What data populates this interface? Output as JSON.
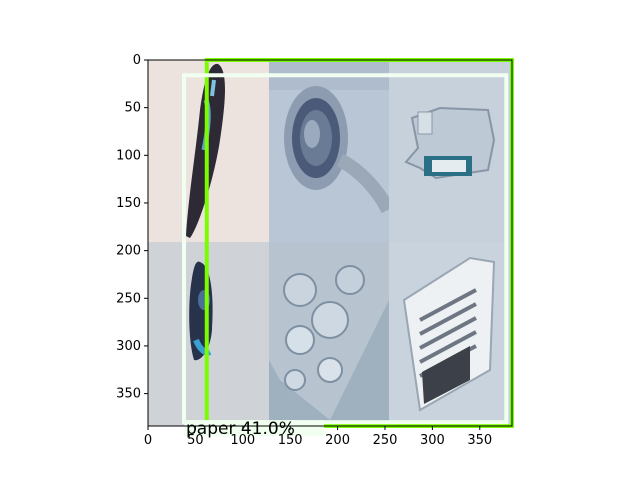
{
  "figure": {
    "x_ticks": [
      "0",
      "50",
      "100",
      "150",
      "200",
      "250",
      "300",
      "350"
    ],
    "y_ticks": [
      "0",
      "50",
      "100",
      "150",
      "200",
      "250",
      "300",
      "350"
    ],
    "x_range": [
      0,
      384
    ],
    "y_range": [
      0,
      384
    ],
    "y_inverted": true
  },
  "tiles": [
    {
      "name": "tile-dark-bottle",
      "bg": "#ece3de",
      "object": "crushed dark plastic bottle"
    },
    {
      "name": "tile-glass-bottle-bottom",
      "bg": "#b9c6d6",
      "object": "glass bottle viewed from bottom"
    },
    {
      "name": "tile-crushed-plastic-bottle",
      "bg": "#c7d1dc",
      "object": "crushed clear plastic bottle with label"
    },
    {
      "name": "tile-dark-bottle-2",
      "bg": "#cfd3d8",
      "object": "crushed dark blue bottle"
    },
    {
      "name": "tile-broken-glass",
      "bg": "#9fb0bf",
      "object": "broken glass shards"
    },
    {
      "name": "tile-newspaper",
      "bg": "#c9d3de",
      "object": "folded newspaper page"
    }
  ],
  "detections": [
    {
      "name": "detection-box-green",
      "color": "#7cfc00",
      "label": "",
      "x0": 62,
      "y0": 0,
      "x1": 384,
      "y1": 384
    },
    {
      "name": "detection-box-white",
      "color": "#f0fff0",
      "label": "paper 41.0%",
      "x0": 38,
      "y0": 16,
      "x1": 378,
      "y1": 380
    }
  ],
  "colors": {
    "axis": "#000000",
    "detection_green": "#7cfc00",
    "detection_white": "#f0fff0"
  }
}
